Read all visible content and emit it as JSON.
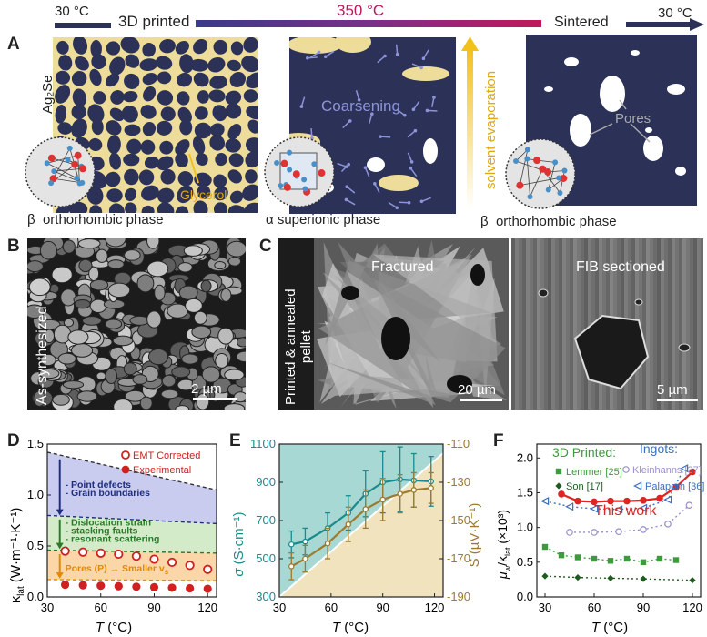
{
  "panelA": {
    "label": "A",
    "temp_start": "30 °C",
    "temp_mid": "350 °C",
    "temp_end": "30 °C",
    "stage_printed": "3D printed",
    "stage_sintered": "Sintered",
    "material": "Ag₂Se",
    "glycerol": "Glycerol",
    "coarsening": "Coarsening",
    "solvent": "solvent evaporation",
    "pores": "Pores",
    "phase1": "β  orthorhombic phase",
    "phase2": "α superionic phase",
    "phase3": "β  orthorhombic phase",
    "colors": {
      "grain": "#2b3157",
      "binder": "#eddc9a",
      "bar_left": "#2b3157",
      "bar_right": "#c2185b",
      "arrow_yellow": "#f2c21b"
    }
  },
  "panelB": {
    "label": "B",
    "caption": "As-synthesized",
    "scale": "2 µm"
  },
  "panelC": {
    "label": "C",
    "caption_line1": "Printed & annealed",
    "caption_line2": "pellet",
    "img1_title": "Fractured",
    "img1_scale": "20 µm",
    "img2_title": "FIB sectioned",
    "img2_scale": "5 µm"
  },
  "panelD": {
    "label": "D",
    "ylabel_main": "κ",
    "ylabel_sub": "lat",
    "ylabel_units": " (W·m⁻¹·K⁻¹)",
    "xlabel_T": "T",
    "xlabel_units": " (°C)",
    "legend": [
      "EMT Corrected",
      "Experimental"
    ],
    "annot1_l1": "- Point defects",
    "annot1_l2": "- Grain boundaries",
    "annot2_l1": "- Dislocation strain",
    "annot2_l2": "- stacking faults",
    "annot2_l3": "- resonant scattering",
    "annot3_pre": "Pores (P)",
    "annot3_post": "Smaller v",
    "annot3_sub": "s"
  },
  "panelE": {
    "label": "E",
    "ylabel_left_sym": "σ",
    "ylabel_left_units": " (S·cm⁻¹)",
    "ylabel_right_sym": "S",
    "ylabel_right_units": " (µV·K⁻¹)",
    "xlabel_T": "T",
    "xlabel_units": " (°C)",
    "color_sigma": "#1a8a8c",
    "color_S": "#9c7a2f"
  },
  "panelF": {
    "label": "F",
    "ylabel_mu": "μ",
    "ylabel_mu_sub": "w",
    "ylabel_kappa": "/κ",
    "ylabel_kappa_sub": "lat",
    "ylabel_tail": " (×10³)",
    "xlabel_T": "T",
    "xlabel_units": " (°C)",
    "group_printed": "3D Printed:",
    "group_ingots": "Ingots:",
    "this_work": "This work",
    "refs": [
      "Lemmer [25]",
      "Son [17]",
      "Kleinhanns [37]",
      "Palaporn [36]"
    ]
  },
  "chart_data": [
    {
      "type": "scatter",
      "panel": "D",
      "x_ticks": [
        "30",
        "60",
        "90",
        "120"
      ],
      "y_ticks": [
        "0.0",
        "0.5",
        "1.0",
        "1.5"
      ],
      "xlim": [
        30,
        125
      ],
      "ylim": [
        0,
        1.5
      ],
      "series": [
        {
          "name": "EMT Corrected",
          "x": [
            40,
            50,
            60,
            70,
            80,
            90,
            100,
            110,
            120
          ],
          "values": [
            0.45,
            0.44,
            0.43,
            0.42,
            0.4,
            0.37,
            0.34,
            0.31,
            0.27
          ]
        },
        {
          "name": "Experimental",
          "x": [
            40,
            50,
            60,
            70,
            80,
            90,
            100,
            110,
            120
          ],
          "values": [
            0.12,
            0.115,
            0.11,
            0.105,
            0.1,
            0.095,
            0.09,
            0.085,
            0.08
          ]
        }
      ],
      "bounds": {
        "x": [
          30,
          125
        ],
        "top": [
          1.42,
          1.05
        ],
        "mid": [
          0.8,
          0.72
        ],
        "low": [
          0.46,
          0.43
        ],
        "bottom": [
          0.17,
          0.16
        ]
      }
    },
    {
      "type": "line",
      "panel": "E",
      "x_ticks": [
        "30",
        "60",
        "90",
        "120"
      ],
      "y_left_ticks": [
        "300",
        "500",
        "700",
        "900",
        "1100"
      ],
      "y_right_ticks": [
        "-190",
        "-170",
        "-150",
        "-130",
        "-110"
      ],
      "xlim": [
        30,
        125
      ],
      "ylim_left": [
        300,
        1100
      ],
      "ylim_right": [
        -190,
        -110
      ],
      "series": [
        {
          "name": "σ",
          "x": [
            37,
            45,
            58,
            70,
            80,
            90,
            100,
            108,
            118
          ],
          "values": [
            575,
            590,
            660,
            740,
            840,
            900,
            915,
            910,
            905
          ],
          "err": [
            70,
            70,
            80,
            90,
            120,
            160,
            170,
            140,
            130
          ]
        },
        {
          "name": "S",
          "x": [
            37,
            45,
            58,
            70,
            80,
            90,
            100,
            108,
            118
          ],
          "values": [
            -174,
            -170,
            -162,
            -152,
            -144,
            -139,
            -136,
            -134,
            -133
          ],
          "err": [
            7,
            7,
            8,
            9,
            10,
            11,
            10,
            9,
            8
          ]
        }
      ]
    },
    {
      "type": "scatter",
      "panel": "F",
      "x_ticks": [
        "30",
        "60",
        "90",
        "120"
      ],
      "y_ticks": [
        "0.0",
        "0.5",
        "1.0",
        "1.5",
        "2.0"
      ],
      "xlim": [
        25,
        125
      ],
      "ylim": [
        0,
        2.2
      ],
      "series": [
        {
          "name": "This work",
          "x": [
            40,
            50,
            60,
            70,
            80,
            90,
            100,
            110,
            120
          ],
          "values": [
            1.48,
            1.38,
            1.37,
            1.38,
            1.38,
            1.39,
            1.42,
            1.58,
            1.8
          ]
        },
        {
          "name": "Lemmer [25]",
          "x": [
            30,
            40,
            50,
            60,
            70,
            80,
            90,
            100,
            110
          ],
          "values": [
            0.72,
            0.6,
            0.57,
            0.55,
            0.52,
            0.55,
            0.5,
            0.55,
            0.53
          ]
        },
        {
          "name": "Son [17]",
          "x": [
            30,
            50,
            70,
            90,
            120
          ],
          "values": [
            0.3,
            0.28,
            0.27,
            0.26,
            0.24
          ]
        },
        {
          "name": "Kleinhanns [37]",
          "x": [
            45,
            60,
            75,
            90,
            105,
            118
          ],
          "values": [
            0.93,
            0.93,
            0.94,
            0.97,
            1.05,
            1.32
          ]
        },
        {
          "name": "Palaporn [36]",
          "x": [
            30,
            45,
            60,
            75,
            90,
            105,
            115
          ],
          "values": [
            1.38,
            1.3,
            1.27,
            1.26,
            1.28,
            1.4,
            1.85
          ]
        }
      ]
    }
  ]
}
